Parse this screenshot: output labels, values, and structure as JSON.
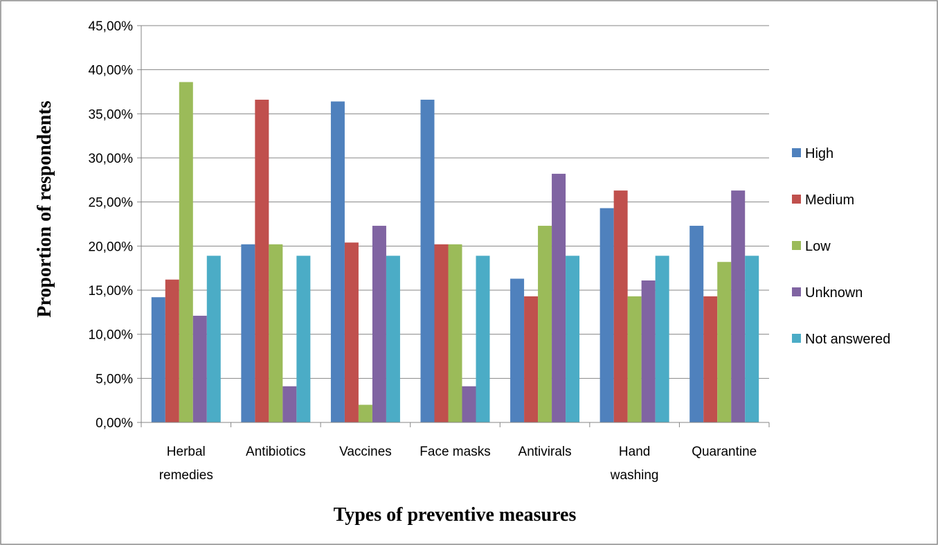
{
  "chart_data": {
    "type": "bar",
    "xlabel": "Types of preventive measures",
    "ylabel": "Proportion of respondents",
    "ylim": [
      0,
      45
    ],
    "yticks": [
      0,
      5,
      10,
      15,
      20,
      25,
      30,
      35,
      40,
      45
    ],
    "ytick_labels": [
      "0,00%",
      "5,00%",
      "10,00%",
      "15,00%",
      "20,00%",
      "25,00%",
      "30,00%",
      "35,00%",
      "40,00%",
      "45,00%"
    ],
    "grid": true,
    "legend_position": "right",
    "categories": [
      [
        "Herbal",
        "remedies"
      ],
      [
        "Antibiotics"
      ],
      [
        "Vaccines"
      ],
      [
        "Face masks"
      ],
      [
        "Antivirals"
      ],
      [
        "Hand",
        "washing"
      ],
      [
        "Quarantine"
      ]
    ],
    "series": [
      {
        "name": "High",
        "color": "#4F81BD",
        "values": [
          14.2,
          20.2,
          36.4,
          36.6,
          16.3,
          24.3,
          22.3
        ]
      },
      {
        "name": "Medium",
        "color": "#C0504D",
        "values": [
          16.2,
          36.6,
          20.4,
          20.2,
          14.3,
          26.3,
          14.3
        ]
      },
      {
        "name": "Low",
        "color": "#9BBB59",
        "values": [
          38.6,
          20.2,
          2.0,
          20.2,
          22.3,
          14.3,
          18.2
        ]
      },
      {
        "name": "Unknown",
        "color": "#8064A2",
        "values": [
          12.1,
          4.1,
          22.3,
          4.1,
          28.2,
          16.1,
          26.3
        ]
      },
      {
        "name": "Not answered",
        "color": "#4BACC6",
        "values": [
          18.9,
          18.9,
          18.9,
          18.9,
          18.9,
          18.9,
          18.9
        ]
      }
    ]
  }
}
